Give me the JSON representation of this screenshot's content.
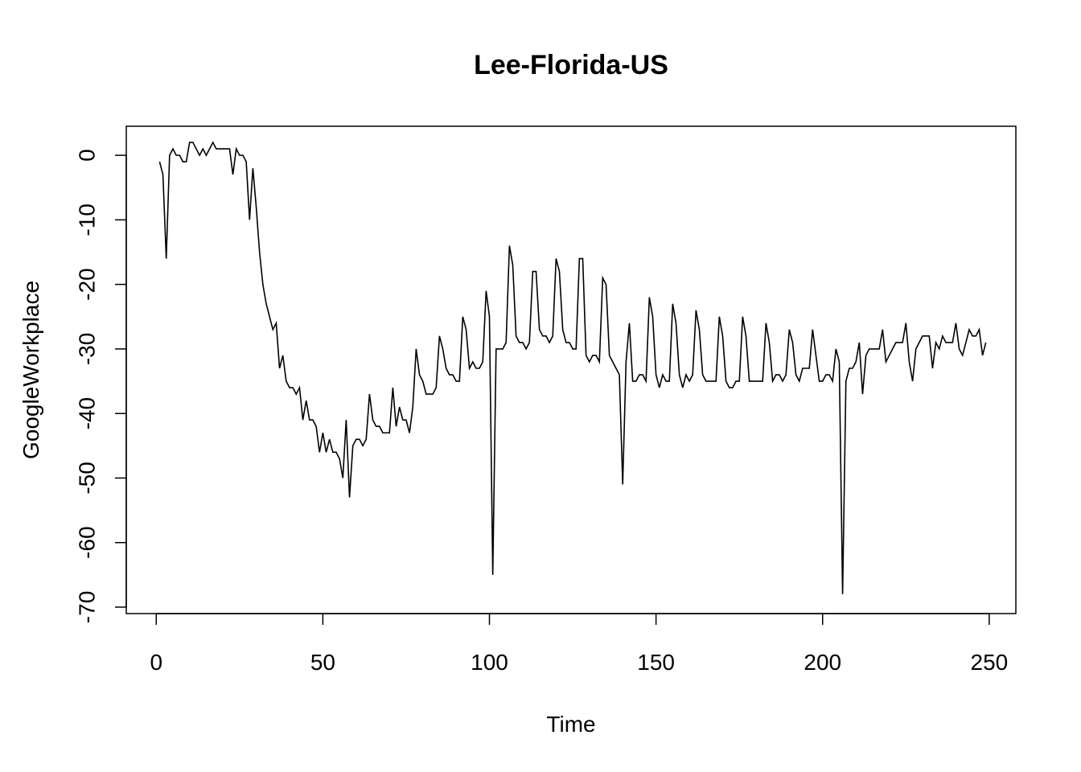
{
  "chart_data": {
    "type": "line",
    "title": "Lee-Florida-US",
    "xlabel": "Time",
    "ylabel": "GoogleWorkplace",
    "xlim": [
      -9,
      258
    ],
    "ylim": [
      -71,
      4.5
    ],
    "xticks": [
      0,
      50,
      100,
      150,
      200,
      250
    ],
    "yticks": [
      0,
      -10,
      -20,
      -30,
      -40,
      -50,
      -60,
      -70
    ],
    "grid": false,
    "legend": "none",
    "line_color": "#000000",
    "series": [
      {
        "x_start": 1,
        "values": [
          -1,
          -3,
          -16,
          0,
          1,
          0,
          0,
          -1,
          -1,
          2,
          2,
          1,
          0,
          1,
          0,
          1,
          2,
          1,
          1,
          1,
          1,
          1,
          -3,
          1,
          0,
          0,
          -1,
          -10,
          -2,
          -8,
          -15,
          -20,
          -23,
          -25,
          -27,
          -26,
          -33,
          -31,
          -35,
          -36,
          -36,
          -37,
          -36,
          -41,
          -38,
          -41,
          -41,
          -42,
          -46,
          -43,
          -46,
          -44,
          -46,
          -46,
          -47,
          -50,
          -41,
          -53,
          -45,
          -44,
          -44,
          -45,
          -44,
          -37,
          -41,
          -42,
          -42,
          -43,
          -43,
          -43,
          -36,
          -42,
          -39,
          -41,
          -41,
          -43,
          -39,
          -30,
          -34,
          -35,
          -37,
          -37,
          -37,
          -36,
          -28,
          -30,
          -33,
          -34,
          -34,
          -35,
          -35,
          -25,
          -27,
          -33,
          -32,
          -33,
          -33,
          -32,
          -21,
          -25,
          -65,
          -30,
          -30,
          -30,
          -29,
          -14,
          -17,
          -28,
          -29,
          -29,
          -30,
          -29,
          -18,
          -18,
          -27,
          -28,
          -28,
          -29,
          -28,
          -16,
          -18,
          -27,
          -29,
          -29,
          -30,
          -30,
          -16,
          -16,
          -31,
          -32,
          -31,
          -31,
          -32,
          -19,
          -20,
          -31,
          -32,
          -33,
          -34,
          -51,
          -32,
          -26,
          -35,
          -35,
          -34,
          -34,
          -35,
          -22,
          -25,
          -34,
          -36,
          -34,
          -35,
          -35,
          -23,
          -26,
          -34,
          -36,
          -34,
          -35,
          -34,
          -24,
          -27,
          -34,
          -35,
          -35,
          -35,
          -35,
          -25,
          -28,
          -35,
          -36,
          -36,
          -35,
          -35,
          -25,
          -28,
          -35,
          -35,
          -35,
          -35,
          -35,
          -26,
          -29,
          -35,
          -34,
          -34,
          -35,
          -34,
          -27,
          -29,
          -34,
          -35,
          -33,
          -33,
          -33,
          -27,
          -31,
          -35,
          -35,
          -34,
          -34,
          -35,
          -30,
          -32,
          -68,
          -35,
          -33,
          -33,
          -32,
          -29,
          -37,
          -31,
          -30,
          -30,
          -30,
          -30,
          -27,
          -32,
          -31,
          -30,
          -29,
          -29,
          -29,
          -26,
          -32,
          -35,
          -30,
          -29,
          -28,
          -28,
          -28,
          -33,
          -29,
          -30,
          -28,
          -29,
          -29,
          -29,
          -26,
          -30,
          -31,
          -29,
          -27,
          -28,
          -28,
          -27,
          -31,
          -29
        ]
      }
    ]
  }
}
